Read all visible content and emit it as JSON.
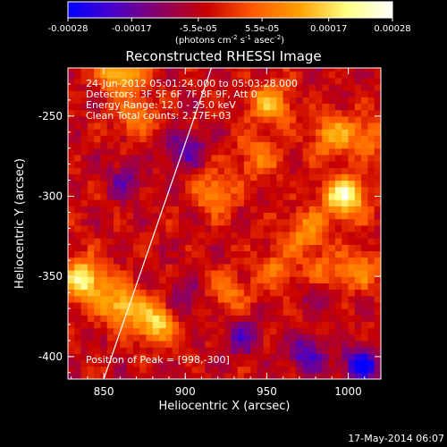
{
  "chart_data": {
    "type": "heatmap",
    "title": "Reconstructed RHESSI Image",
    "xlabel": "Heliocentric X (arcsec)",
    "ylabel": "Heliocentric Y (arcsec)",
    "xlim": [
      828,
      1020
    ],
    "ylim": [
      -414,
      -220
    ],
    "x_ticks": [
      850,
      900,
      950,
      1000
    ],
    "x_tick_labels": [
      "850",
      "900",
      "950",
      "1000"
    ],
    "y_ticks": [
      -250,
      -300,
      -350,
      -400
    ],
    "y_tick_labels": [
      "-250",
      "-300",
      "-350",
      "-400"
    ],
    "colorbar": {
      "range": [
        -0.00028,
        0.00028
      ],
      "ticks": [
        -0.00028,
        -0.00017,
        -5.5e-05,
        5.5e-05,
        0.00017,
        0.00028
      ],
      "tick_labels": [
        "-0.00028",
        "-0.00017",
        "-5.5e-05",
        "5.5e-05",
        "0.00017",
        "0.00028"
      ],
      "unit_label": "(photons cm",
      "unit_exp1": "-2",
      "unit_mid": " s",
      "unit_exp2": "-1",
      "unit_mid2": " asec",
      "unit_exp3": "-2",
      "unit_end": ")",
      "colors": [
        "#0000ff",
        "#4b00c8",
        "#8c0064",
        "#c80000",
        "#ff5a00",
        "#ffa000",
        "#ffff80",
        "#ffffff"
      ]
    },
    "annotations": [
      "24-Jun-2012 05:01:24.000 to 05:03:28.000",
      "Detectors: 3F 5F 6F 7F 8F 9F, Att 0",
      "Energy Range: 12.0 - 25.0 keV",
      "Clean     Total counts: 2.17E+03"
    ],
    "peak_label": "Position of Peak = [998,-300]",
    "limb_line": [
      [
        850,
        -414
      ],
      [
        916,
        -220
      ]
    ],
    "hot_regions": [
      {
        "x": 860,
        "y": -222,
        "value": 0.00022
      },
      {
        "x": 870,
        "y": -250,
        "value": 0.00012
      },
      {
        "x": 952,
        "y": -242,
        "value": 0.00018
      },
      {
        "x": 990,
        "y": -262,
        "value": 0.00016
      },
      {
        "x": 998,
        "y": -300,
        "value": 0.00028
      },
      {
        "x": 975,
        "y": -322,
        "value": 0.00015
      },
      {
        "x": 985,
        "y": -350,
        "value": 0.00014
      },
      {
        "x": 1008,
        "y": -345,
        "value": 0.00012
      },
      {
        "x": 838,
        "y": -352,
        "value": 0.00026
      },
      {
        "x": 860,
        "y": -368,
        "value": 0.0002
      },
      {
        "x": 882,
        "y": -378,
        "value": 0.00022
      },
      {
        "x": 918,
        "y": -298,
        "value": 0.00014
      },
      {
        "x": 945,
        "y": -275,
        "value": 0.00012
      },
      {
        "x": 926,
        "y": -360,
        "value": 0.00011
      },
      {
        "x": 955,
        "y": -345,
        "value": 0.0001
      },
      {
        "x": 1012,
        "y": -262,
        "value": 0.00012
      }
    ],
    "cold_regions": [
      {
        "x": 862,
        "y": -290,
        "value": -0.0001
      },
      {
        "x": 900,
        "y": -270,
        "value": -0.00014
      },
      {
        "x": 935,
        "y": -388,
        "value": -0.00012
      },
      {
        "x": 975,
        "y": -398,
        "value": -0.00016
      },
      {
        "x": 1008,
        "y": -405,
        "value": -0.00022
      },
      {
        "x": 982,
        "y": -358,
        "value": -0.00012
      },
      {
        "x": 900,
        "y": -365,
        "value": -0.0001
      }
    ]
  },
  "footer": {
    "date": "17-May-2014 06:07"
  }
}
